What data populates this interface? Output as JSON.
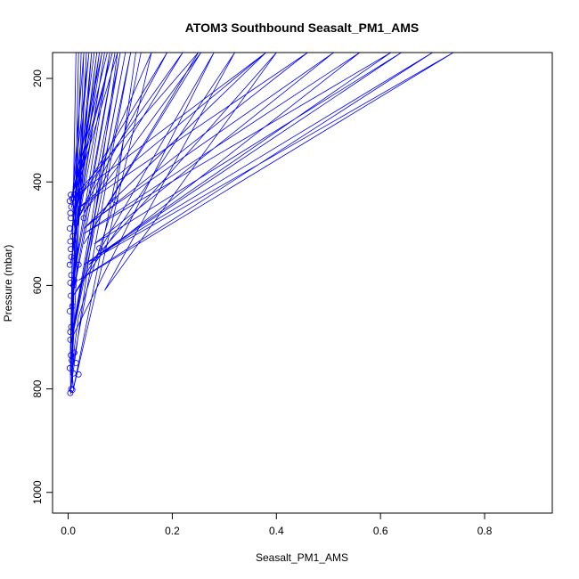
{
  "chart_data": {
    "type": "line",
    "title": "ATOM3 Southbound Seasalt_PM1_AMS",
    "xlabel": "Seasalt_PM1_AMS",
    "ylabel": "Pressure (mbar)",
    "xlim": [
      -0.03,
      0.93
    ],
    "ylim": [
      1040,
      150
    ],
    "y_reversed": true,
    "x_ticks": [
      0.0,
      0.2,
      0.4,
      0.6,
      0.8
    ],
    "x_tick_labels": [
      "0.0",
      "0.2",
      "0.4",
      "0.6",
      "0.8"
    ],
    "y_ticks": [
      200,
      400,
      600,
      800,
      1000
    ],
    "y_tick_labels": [
      "200",
      "400",
      "600",
      "800",
      "1000"
    ],
    "grid": false,
    "legend": "none",
    "line_color": "#0000ff",
    "series": [
      {
        "points": [
          [
            0.01,
            800
          ],
          [
            0.008,
            770
          ],
          [
            0.012,
            720
          ],
          [
            0.02,
            660
          ],
          [
            0.06,
            530
          ],
          [
            0.09,
            435
          ],
          [
            0.13,
            150
          ],
          [
            0.14,
            150
          ],
          [
            0.01,
            800
          ],
          [
            0.16,
            150
          ],
          [
            0.02,
            470
          ],
          [
            0.19,
            150
          ],
          [
            0.015,
            440
          ],
          [
            0.22,
            150
          ],
          [
            0.03,
            460
          ],
          [
            0.255,
            150
          ],
          [
            0.03,
            520
          ],
          [
            0.25,
            150
          ],
          [
            0.01,
            430
          ],
          [
            0.38,
            150
          ],
          [
            0.02,
            450
          ],
          [
            0.46,
            150
          ],
          [
            0.03,
            490
          ],
          [
            0.38,
            150
          ],
          [
            0.04,
            480
          ],
          [
            0.51,
            150
          ],
          [
            0.05,
            520
          ],
          [
            0.64,
            150
          ],
          [
            0.06,
            540
          ],
          [
            0.7,
            150
          ],
          [
            0.02,
            590
          ],
          [
            0.74,
            150
          ],
          [
            0.03,
            560
          ],
          [
            0.62,
            150
          ],
          [
            0.03,
            500
          ],
          [
            0.56,
            150
          ],
          [
            0.04,
            560
          ],
          [
            0.4,
            150
          ],
          [
            0.07,
            610
          ],
          [
            0.32,
            150
          ],
          [
            0.01,
            620
          ],
          [
            0.28,
            150
          ],
          [
            0.008,
            700
          ],
          [
            0.005,
            760
          ],
          [
            0.01,
            800
          ]
        ]
      },
      {
        "points": [
          [
            0.005,
            810
          ],
          [
            0.004,
            760
          ],
          [
            0.006,
            700
          ],
          [
            0.008,
            640
          ],
          [
            0.012,
            580
          ],
          [
            0.015,
            520
          ],
          [
            0.01,
            460
          ],
          [
            0.02,
            430
          ],
          [
            0.03,
            150
          ],
          [
            0.008,
            430
          ],
          [
            0.04,
            150
          ],
          [
            0.01,
            470
          ],
          [
            0.05,
            150
          ],
          [
            0.006,
            500
          ],
          [
            0.06,
            150
          ],
          [
            0.012,
            520
          ],
          [
            0.07,
            150
          ],
          [
            0.004,
            560
          ],
          [
            0.08,
            150
          ],
          [
            0.008,
            600
          ],
          [
            0.09,
            150
          ],
          [
            0.005,
            640
          ],
          [
            0.1,
            150
          ],
          [
            0.01,
            680
          ],
          [
            0.11,
            150
          ],
          [
            0.004,
            720
          ],
          [
            0.12,
            150
          ],
          [
            0.008,
            760
          ],
          [
            0.02,
            150
          ],
          [
            0.006,
            800
          ],
          [
            0.035,
            150
          ],
          [
            0.004,
            740
          ],
          [
            0.015,
            150
          ],
          [
            0.006,
            690
          ],
          [
            0.025,
            150
          ],
          [
            0.01,
            620
          ],
          [
            0.045,
            150
          ],
          [
            0.008,
            540
          ],
          [
            0.055,
            150
          ],
          [
            0.012,
            480
          ],
          [
            0.065,
            150
          ],
          [
            0.005,
            440
          ],
          [
            0.075,
            150
          ],
          [
            0.01,
            420
          ],
          [
            0.085,
            150
          ],
          [
            0.006,
            450
          ],
          [
            0.095,
            150
          ],
          [
            0.005,
            800
          ]
        ]
      }
    ],
    "markers": [
      [
        0.004,
        808
      ],
      [
        0.006,
        800
      ],
      [
        0.008,
        802
      ],
      [
        0.01,
        770
      ],
      [
        0.02,
        772
      ],
      [
        0.015,
        750
      ],
      [
        0.012,
        730
      ],
      [
        0.005,
        735
      ],
      [
        0.004,
        705
      ],
      [
        0.006,
        680
      ],
      [
        0.003,
        650
      ],
      [
        0.005,
        620
      ],
      [
        0.004,
        595
      ],
      [
        0.006,
        580
      ],
      [
        0.003,
        560
      ],
      [
        0.005,
        530
      ],
      [
        0.004,
        515
      ],
      [
        0.003,
        490
      ],
      [
        0.005,
        470
      ],
      [
        0.004,
        460
      ],
      [
        0.006,
        448
      ],
      [
        0.003,
        437
      ],
      [
        0.008,
        432
      ],
      [
        0.012,
        425
      ],
      [
        0.018,
        420
      ],
      [
        0.03,
        470
      ],
      [
        0.06,
        528
      ],
      [
        0.09,
        435
      ],
      [
        0.02,
        560
      ],
      [
        0.01,
        600
      ],
      [
        0.003,
        760
      ],
      [
        0.007,
        745
      ],
      [
        0.004,
        690
      ],
      [
        0.008,
        640
      ],
      [
        0.006,
        545
      ],
      [
        0.009,
        505
      ],
      [
        0.005,
        425
      ],
      [
        0.012,
        590
      ],
      [
        0.015,
        480
      ],
      [
        0.025,
        450
      ]
    ]
  }
}
